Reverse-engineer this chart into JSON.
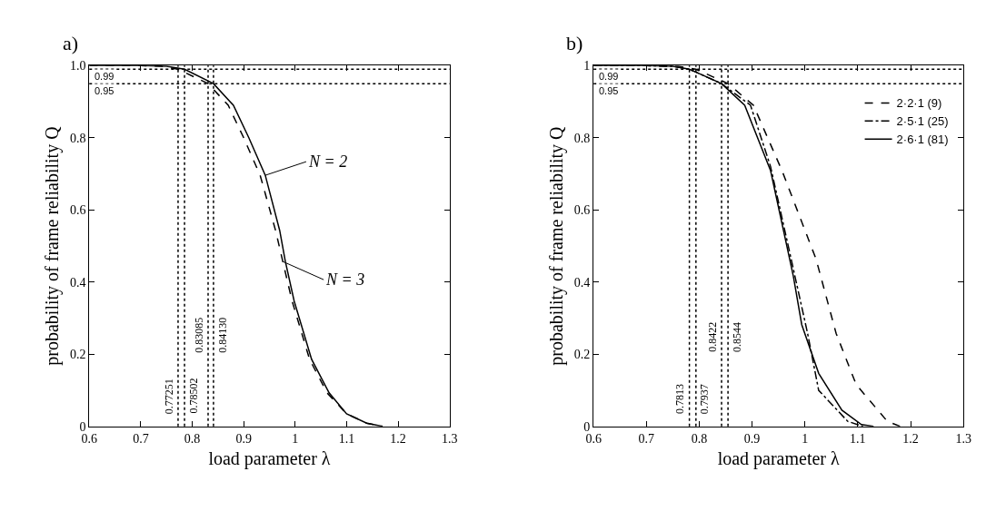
{
  "chart_data": [
    {
      "type": "line",
      "title": "a)",
      "xlabel": "load parameter λ",
      "ylabel": "probability of frame reliability Q",
      "xlim": [
        0.6,
        1.3
      ],
      "xticks": [
        0.6,
        0.7,
        0.8,
        0.9,
        1,
        1.1,
        1.2,
        1.3
      ],
      "ylim": [
        0,
        1.0
      ],
      "yticks": [
        0,
        0.2,
        0.4,
        0.6,
        0.8,
        {
          "value": 1.0,
          "label": "1.0"
        }
      ],
      "legend": false,
      "marker": "none",
      "series": [
        {
          "color": "#000000",
          "line_style": "solid",
          "x": [
            0.6,
            0.7,
            0.75,
            0.78502,
            0.8413,
            0.88,
            0.91,
            0.942,
            0.97,
            0.981,
            0.998,
            1.032,
            1.066,
            1.1,
            1.139,
            1.17
          ],
          "values": [
            1,
            1,
            0.998,
            0.99,
            0.95,
            0.89,
            0.8,
            0.696,
            0.543,
            0.457,
            0.348,
            0.186,
            0.093,
            0.035,
            0.009,
            0
          ]
        },
        {
          "color": "#000000",
          "line_style": "dashed",
          "x": [
            0.6,
            0.7,
            0.74,
            0.77251,
            0.83085,
            0.87,
            0.9,
            0.932,
            0.962,
            0.976,
            0.994,
            1.028,
            1.062,
            1.1,
            1.139,
            1.17
          ],
          "values": [
            1,
            1,
            0.998,
            0.99,
            0.95,
            0.89,
            0.8,
            0.696,
            0.543,
            0.457,
            0.348,
            0.186,
            0.093,
            0.035,
            0.009,
            0
          ]
        }
      ],
      "ref_lines": [
        {
          "axis": "x",
          "value": 0.77251,
          "label": "0.77251",
          "line_style": "dotted"
        },
        {
          "axis": "x",
          "value": 0.78502,
          "label": "0.78502",
          "line_style": "dotted"
        },
        {
          "axis": "x",
          "value": 0.83085,
          "label": "0.83085",
          "line_style": "dotted"
        },
        {
          "axis": "x",
          "value": 0.8413,
          "label": "0.84130",
          "line_style": "dotted"
        },
        {
          "axis": "y",
          "value": 0.99,
          "label": "0.99",
          "line_style": "dotted"
        },
        {
          "axis": "y",
          "value": 0.95,
          "label": "0.95",
          "line_style": "dotted"
        }
      ],
      "annotations": [
        {
          "text": "N = 2",
          "x": 0.942,
          "y": 0.696
        },
        {
          "text": "N = 3",
          "x": 0.976,
          "y": 0.457
        }
      ]
    },
    {
      "type": "line",
      "title": "b)",
      "xlabel": "load parameter λ",
      "ylabel": "probability of frame reliability Q",
      "xlim": [
        0.6,
        1.3
      ],
      "xticks": [
        0.6,
        0.7,
        0.8,
        0.9,
        1,
        1.1,
        1.2,
        1.3
      ],
      "ylim": [
        0,
        1
      ],
      "yticks": [
        0,
        0.2,
        0.4,
        0.6,
        0.8,
        1
      ],
      "legend": "top right",
      "marker": "none",
      "series": [
        {
          "name": "2·2·1 (9)",
          "color": "#000000",
          "line_style": "dashed",
          "x": [
            0.6,
            0.7,
            0.76,
            0.7937,
            0.8544,
            0.9026,
            0.9566,
            1.021,
            1.059,
            1.097,
            1.156,
            1.18
          ],
          "values": [
            1,
            1,
            0.998,
            0.99,
            0.95,
            0.89,
            0.709,
            0.464,
            0.258,
            0.116,
            0.014,
            0
          ]
        },
        {
          "name": "2·5·1 (25)",
          "color": "#000000",
          "line_style": "dashdot",
          "x": [
            0.6,
            0.7,
            0.75,
            0.7813,
            0.8422,
            0.897,
            0.935,
            0.973,
            1.005,
            1.026,
            1.081,
            1.11
          ],
          "values": [
            1,
            1,
            0.998,
            0.99,
            0.95,
            0.89,
            0.72,
            0.47,
            0.258,
            0.1,
            0.014,
            0
          ]
        },
        {
          "name": "2·6·1 (81)",
          "color": "#000000",
          "line_style": "solid",
          "x": [
            0.6,
            0.7,
            0.75,
            0.7813,
            0.8422,
            0.886,
            0.935,
            0.978,
            0.994,
            1.026,
            1.07,
            1.107,
            1.13
          ],
          "values": [
            1,
            1,
            0.998,
            0.99,
            0.95,
            0.89,
            0.709,
            0.417,
            0.282,
            0.147,
            0.045,
            0.005,
            0
          ]
        }
      ],
      "ref_lines": [
        {
          "axis": "x",
          "value": 0.7813,
          "label": "0.7813",
          "line_style": "dotted"
        },
        {
          "axis": "x",
          "value": 0.7937,
          "label": "0.7937",
          "line_style": "dotted"
        },
        {
          "axis": "x",
          "value": 0.8422,
          "label": "0.8422",
          "line_style": "dotted"
        },
        {
          "axis": "x",
          "value": 0.8544,
          "label": "0.8544",
          "line_style": "dotted"
        },
        {
          "axis": "y",
          "value": 0.99,
          "label": "0.99",
          "line_style": "dotted"
        },
        {
          "axis": "y",
          "value": 0.95,
          "label": "0.95",
          "line_style": "dotted"
        }
      ]
    }
  ]
}
